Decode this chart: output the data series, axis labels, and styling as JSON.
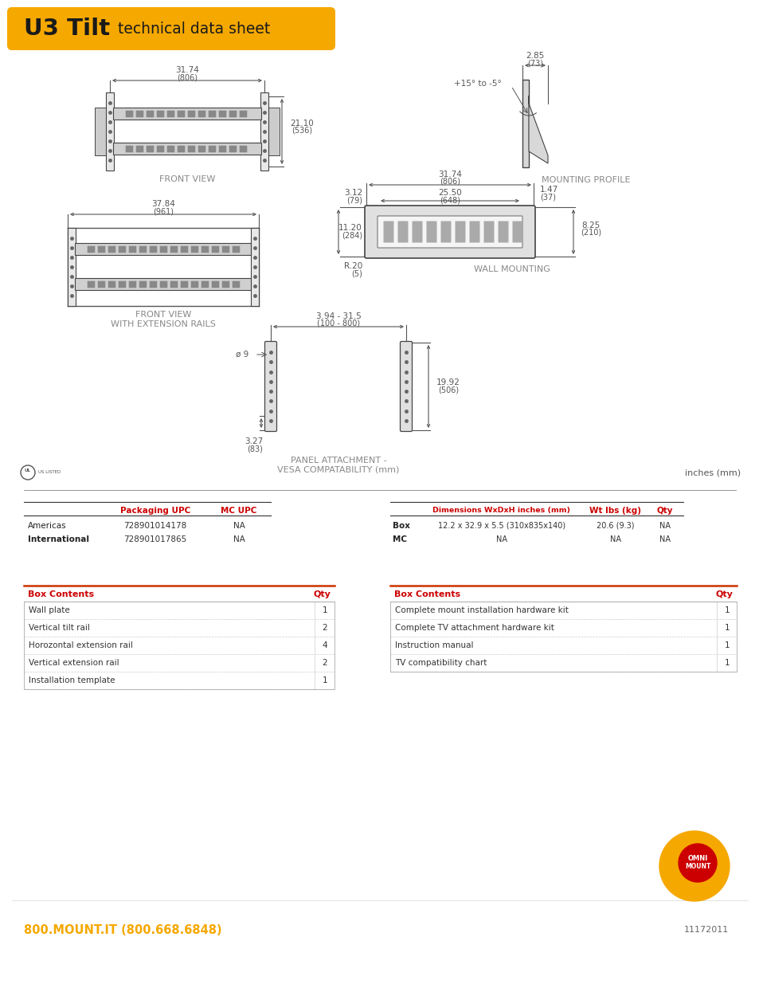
{
  "title_bold": "U3 Tilt",
  "title_normal": " technical data sheet",
  "title_bg_color": "#F5A800",
  "title_text_color": "#1a1a1a",
  "body_bg": "#ffffff",
  "text_color": "#333333",
  "dim_color": "#888888",
  "red_color": "#cc0000",
  "orange_color": "#F5A800",
  "line_color": "#333333",
  "footer_phone": "800.MOUNT.IT (800.668.6848)",
  "footer_date": "11172011",
  "inches_mm": "inches (mm)",
  "upc_header": [
    "",
    "Packaging UPC",
    "MC UPC"
  ],
  "upc_rows": [
    [
      "Americas",
      "728901014178",
      "NA"
    ],
    [
      "International",
      "728901017865",
      "NA"
    ]
  ],
  "dim_header": [
    "",
    "Dimensions WxDxH inches (mm)",
    "Wt lbs (kg)",
    "Qty"
  ],
  "dim_rows": [
    [
      "Box",
      "12.2 x 32.9 x 5.5 (310x835x140)",
      "20.6 (9.3)",
      "NA"
    ],
    [
      "MC",
      "NA",
      "NA",
      "NA"
    ]
  ],
  "box_contents_left_header": "Box Contents",
  "box_contents_left_qty": "Qty",
  "box_contents_left": [
    [
      "Wall plate",
      "1"
    ],
    [
      "Vertical tilt rail",
      "2"
    ],
    [
      "Horozontal extension rail",
      "4"
    ],
    [
      "Vertical extension rail",
      "2"
    ],
    [
      "Installation template",
      "1"
    ]
  ],
  "box_contents_right_header": "Box Contents",
  "box_contents_right_qty": "Qty",
  "box_contents_right": [
    [
      "Complete mount installation hardware kit",
      "1"
    ],
    [
      "Complete TV attachment hardware kit",
      "1"
    ],
    [
      "Instruction manual",
      "1"
    ],
    [
      "TV compatibility chart",
      "1"
    ]
  ]
}
